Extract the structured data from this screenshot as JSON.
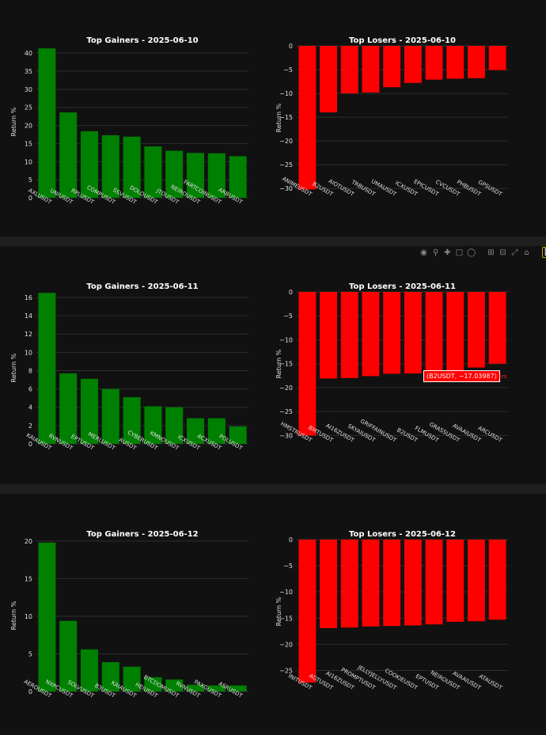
{
  "panels": [
    {
      "gainers": {
        "title": "Top Gainers - 2025-06-10",
        "ylabel": "Return %",
        "type": "bar",
        "color": "#008000",
        "ylim": [
          0,
          42
        ],
        "ticks": [
          0,
          5,
          10,
          15,
          20,
          25,
          30,
          35,
          40
        ],
        "categories": [
          "AXLUSDT",
          "UNIUSDT",
          "RPLUSDT",
          "COMPUSDT",
          "SSVUSDT",
          "DOLOUSDT",
          "JTOUSDT",
          "NEIROUSDT",
          "FARTCOINUSDT",
          "ARBUSDT"
        ],
        "values": [
          41.3,
          23.6,
          18.4,
          17.3,
          16.9,
          14.2,
          13.0,
          12.4,
          12.3,
          11.5
        ]
      },
      "losers": {
        "title": "Top Losers - 2025-06-10",
        "ylabel": "Return %",
        "type": "bar",
        "color": "#ff0000",
        "ylim": [
          -30.3,
          0
        ],
        "ticks": [
          0,
          -5,
          -10,
          -15,
          -20,
          -25,
          -30
        ],
        "categories": [
          "ANIMEUSDT",
          "B2USDT",
          "AIOTUSDT",
          "TRBUSDT",
          "UMAUSDT",
          "ICXUSDT",
          "EPICUSDT",
          "CVCUSDT",
          "PHBUSDT",
          "GPSUSDT"
        ],
        "values": [
          -30.2,
          -14.0,
          -10.0,
          -9.8,
          -8.7,
          -7.8,
          -7.1,
          -6.9,
          -6.8,
          -5.1
        ]
      }
    },
    {
      "gainers": {
        "title": "Top Gainers - 2025-06-11",
        "ylabel": "Return %",
        "type": "bar",
        "color": "#008000",
        "ylim": [
          0,
          16.6
        ],
        "ticks": [
          0,
          2,
          4,
          6,
          8,
          10,
          12,
          14,
          16
        ],
        "categories": [
          "KAIAUSDT",
          "RVNUSDT",
          "EPTUSDT",
          "MERLUSDT",
          "AUSDT",
          "CYBERUSDT",
          "KMNOUSDT",
          "ICXUSDT",
          "ACXUSDT",
          "POLUSDT"
        ],
        "values": [
          16.5,
          7.7,
          7.1,
          6.0,
          5.1,
          4.1,
          4.0,
          2.8,
          2.8,
          1.9
        ]
      },
      "losers": {
        "title": "Top Losers - 2025-06-11",
        "ylabel": "Return %",
        "type": "bar",
        "color": "#ff0000",
        "ylim": [
          -30.1,
          0
        ],
        "ticks": [
          0,
          -5,
          -10,
          -15,
          -20,
          -25,
          -30
        ],
        "categories": [
          "HMSTRUSDT",
          "BMTUSDT",
          "AI16ZUSDT",
          "SKYAIUSDT",
          "GRIFFAINUSDT",
          "B2USDT",
          "FLMUSDT",
          "GRASSUSDT",
          "AVAAIUSDT",
          "ARCUSDT"
        ],
        "values": [
          -30.0,
          -18.1,
          -18.0,
          -17.6,
          -17.1,
          -17.03987,
          -16.6,
          -16.4,
          -15.8,
          -15.0
        ],
        "tooltip": "(B2USDT, −17.03987)",
        "tooltip_tag": "Losers"
      }
    },
    {
      "gainers": {
        "title": "Top Gainers - 2025-06-12",
        "ylabel": "Return %",
        "type": "bar",
        "color": "#008000",
        "ylim": [
          0,
          20.2
        ],
        "ticks": [
          0,
          5,
          10,
          15,
          20
        ],
        "categories": [
          "AEROUSDT",
          "NXPCUSDT",
          "SOLVUSDT",
          "B3USDT",
          "KAIAUSDT",
          "HEIUSDT",
          "BTCDOMUSDT",
          "RVNUSDT",
          "PAXGUSDT",
          "ASRUSDT"
        ],
        "values": [
          19.8,
          9.4,
          5.6,
          3.9,
          3.3,
          1.9,
          1.6,
          0.9,
          0.8,
          0.8
        ]
      },
      "losers": {
        "title": "Top Losers - 2025-06-12",
        "ylabel": "Return %",
        "type": "bar",
        "color": "#ff0000",
        "ylim": [
          -27.5,
          0
        ],
        "ticks": [
          0,
          -5,
          -10,
          -15,
          -20,
          -25
        ],
        "categories": [
          "INITUSDT",
          "AGTUSDT",
          "AI16ZUSDT",
          "PROMPTUSDT",
          "JELLYJELLYUSDT",
          "COOKIEUSDT",
          "EPTUSDT",
          "NEIROUSDT",
          "AVAAIUSDT",
          "ATAUSDT"
        ],
        "values": [
          -27.3,
          -16.9,
          -16.8,
          -16.6,
          -16.5,
          -16.4,
          -16.2,
          -15.7,
          -15.6,
          -15.3
        ]
      }
    }
  ],
  "toolbar": {
    "icons": [
      "camera-icon",
      "zoom-icon",
      "pan-icon",
      "box-select-icon",
      "lasso-icon",
      "zoom-in-icon",
      "zoom-out-icon",
      "autoscale-icon",
      "reset-axes-icon",
      "plotly-logo-icon"
    ]
  }
}
